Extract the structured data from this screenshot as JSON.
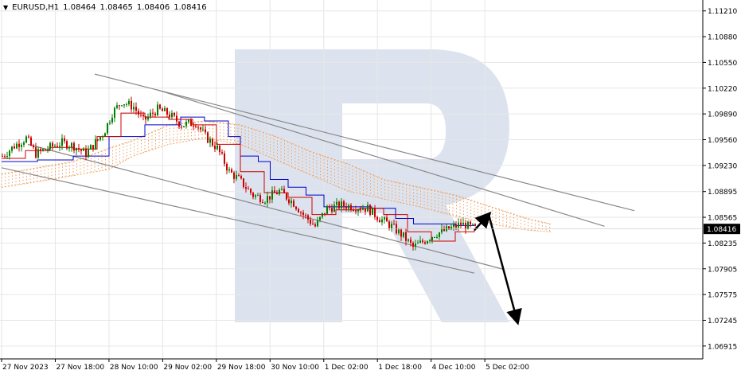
{
  "header": {
    "symbol": "EURUSD,H1",
    "open": "1.08464",
    "high": "1.08465",
    "low": "1.08406",
    "close": "1.08416"
  },
  "colors": {
    "bull_candle": "#008000",
    "bear_candle": "#cc0000",
    "tenkan": "#cc0000",
    "kijun": "#0000cc",
    "cloud": "#f0a060",
    "channel": "#888888",
    "grid": "#e6e6e6",
    "arrow": "#000000",
    "current_price_bg": "#000000",
    "watermark": "#dde3ee"
  },
  "chart_data": {
    "type": "candlestick",
    "title": "EURUSD,H1",
    "ylim": [
      1.0675,
      1.1135
    ],
    "y_ticks": [
      "1.11210",
      "1.10880",
      "1.10550",
      "1.10220",
      "1.09890",
      "1.09560",
      "1.09230",
      "1.08895",
      "1.08565",
      "1.08416",
      "1.08235",
      "1.07905",
      "1.07575",
      "1.07245",
      "1.06915"
    ],
    "x_ticks": [
      "27 Nov 2023",
      "27 Nov 18:00",
      "28 Nov 10:00",
      "29 Nov 02:00",
      "29 Nov 18:00",
      "30 Nov 10:00",
      "1 Dec 02:00",
      "1 Dec 18:00",
      "4 Dec 10:00",
      "5 Dec 02:00"
    ],
    "current_price": "1.08416",
    "grid": true,
    "indicators": [
      "ichimoku"
    ],
    "price_path": [
      [
        0,
        1.0935
      ],
      [
        10,
        1.0948
      ],
      [
        20,
        1.0958
      ],
      [
        28,
        1.0938
      ],
      [
        38,
        1.0945
      ],
      [
        50,
        1.0952
      ],
      [
        60,
        1.0948
      ],
      [
        70,
        1.0938
      ],
      [
        85,
        1.0965
      ],
      [
        92,
        1.099
      ],
      [
        100,
        1.1005
      ],
      [
        110,
        1.0998
      ],
      [
        118,
        1.098
      ],
      [
        130,
        1.0995
      ],
      [
        140,
        1.0988
      ],
      [
        150,
        1.0975
      ],
      [
        162,
        1.0978
      ],
      [
        170,
        1.096
      ],
      [
        180,
        1.0945
      ],
      [
        190,
        1.0915
      ],
      [
        198,
        1.0905
      ],
      [
        210,
        1.0885
      ],
      [
        220,
        1.088
      ],
      [
        232,
        1.089
      ],
      [
        244,
        1.0875
      ],
      [
        252,
        1.086
      ],
      [
        262,
        1.0845
      ],
      [
        272,
        1.0868
      ],
      [
        284,
        1.0872
      ],
      [
        296,
        1.087
      ],
      [
        306,
        1.0868
      ],
      [
        316,
        1.0855
      ],
      [
        326,
        1.0845
      ],
      [
        336,
        1.0832
      ],
      [
        344,
        1.0818
      ],
      [
        352,
        1.0825
      ],
      [
        362,
        1.0835
      ],
      [
        372,
        1.084
      ],
      [
        384,
        1.0848
      ],
      [
        396,
        1.0842
      ]
    ],
    "tenkan_path": [
      [
        0,
        1.0932
      ],
      [
        20,
        1.0942
      ],
      [
        40,
        1.0946
      ],
      [
        60,
        1.0944
      ],
      [
        80,
        1.096
      ],
      [
        100,
        1.099
      ],
      [
        120,
        1.0985
      ],
      [
        140,
        1.0982
      ],
      [
        160,
        1.0975
      ],
      [
        180,
        1.095
      ],
      [
        200,
        1.0915
      ],
      [
        220,
        1.0888
      ],
      [
        240,
        1.0882
      ],
      [
        260,
        1.086
      ],
      [
        280,
        1.0866
      ],
      [
        300,
        1.0868
      ],
      [
        320,
        1.086
      ],
      [
        340,
        1.0838
      ],
      [
        360,
        1.0826
      ],
      [
        380,
        1.0838
      ],
      [
        396,
        1.0842
      ]
    ],
    "kijun_path": [
      [
        0,
        1.0928
      ],
      [
        30,
        1.093
      ],
      [
        60,
        1.0935
      ],
      [
        90,
        1.096
      ],
      [
        120,
        1.0975
      ],
      [
        150,
        1.0985
      ],
      [
        170,
        1.098
      ],
      [
        190,
        1.096
      ],
      [
        200,
        1.0935
      ],
      [
        215,
        1.0928
      ],
      [
        225,
        1.0905
      ],
      [
        240,
        1.0895
      ],
      [
        255,
        1.0885
      ],
      [
        270,
        1.087
      ],
      [
        290,
        1.087
      ],
      [
        310,
        1.0868
      ],
      [
        330,
        1.0855
      ],
      [
        345,
        1.0848
      ],
      [
        360,
        1.0848
      ],
      [
        380,
        1.0846
      ],
      [
        396,
        1.0846
      ]
    ],
    "cloud_upper": [
      [
        0,
        1.0912
      ],
      [
        30,
        1.092
      ],
      [
        60,
        1.0928
      ],
      [
        90,
        1.0945
      ],
      [
        110,
        1.0955
      ],
      [
        140,
        1.0975
      ],
      [
        170,
        1.098
      ],
      [
        200,
        1.0975
      ],
      [
        230,
        1.096
      ],
      [
        260,
        1.094
      ],
      [
        290,
        1.0925
      ],
      [
        320,
        1.0905
      ],
      [
        350,
        1.0895
      ],
      [
        380,
        1.0885
      ],
      [
        410,
        1.087
      ],
      [
        440,
        1.0855
      ],
      [
        460,
        1.0848
      ]
    ],
    "cloud_lower": [
      [
        0,
        1.0895
      ],
      [
        30,
        1.0902
      ],
      [
        60,
        1.091
      ],
      [
        90,
        1.0918
      ],
      [
        110,
        1.0935
      ],
      [
        140,
        1.095
      ],
      [
        170,
        1.0958
      ],
      [
        200,
        1.095
      ],
      [
        230,
        1.093
      ],
      [
        260,
        1.091
      ],
      [
        290,
        1.089
      ],
      [
        320,
        1.088
      ],
      [
        350,
        1.087
      ],
      [
        380,
        1.0858
      ],
      [
        410,
        1.0848
      ],
      [
        440,
        1.084
      ],
      [
        460,
        1.0838
      ]
    ],
    "channel_lines": [
      {
        "name": "upper-channel-line-1",
        "from": [
          78,
          1.104
        ],
        "to": [
          530,
          1.0865
        ]
      },
      {
        "name": "upper-channel-line-2",
        "from": [
          130,
          1.102
        ],
        "to": [
          505,
          1.0845
        ]
      },
      {
        "name": "lower-channel-line-1",
        "from": [
          22,
          1.095
        ],
        "to": [
          420,
          1.079
        ]
      },
      {
        "name": "lower-channel-line-2",
        "from": [
          0,
          1.092
        ],
        "to": [
          396,
          1.0785
        ]
      }
    ],
    "forecast_arrows": [
      {
        "name": "forecast-arrow-up",
        "from": [
          396,
          1.084
        ],
        "to": [
          408,
          1.086
        ]
      },
      {
        "name": "forecast-arrow-down",
        "from": [
          408,
          1.086
        ],
        "to": [
          432,
          1.0723
        ]
      }
    ]
  }
}
